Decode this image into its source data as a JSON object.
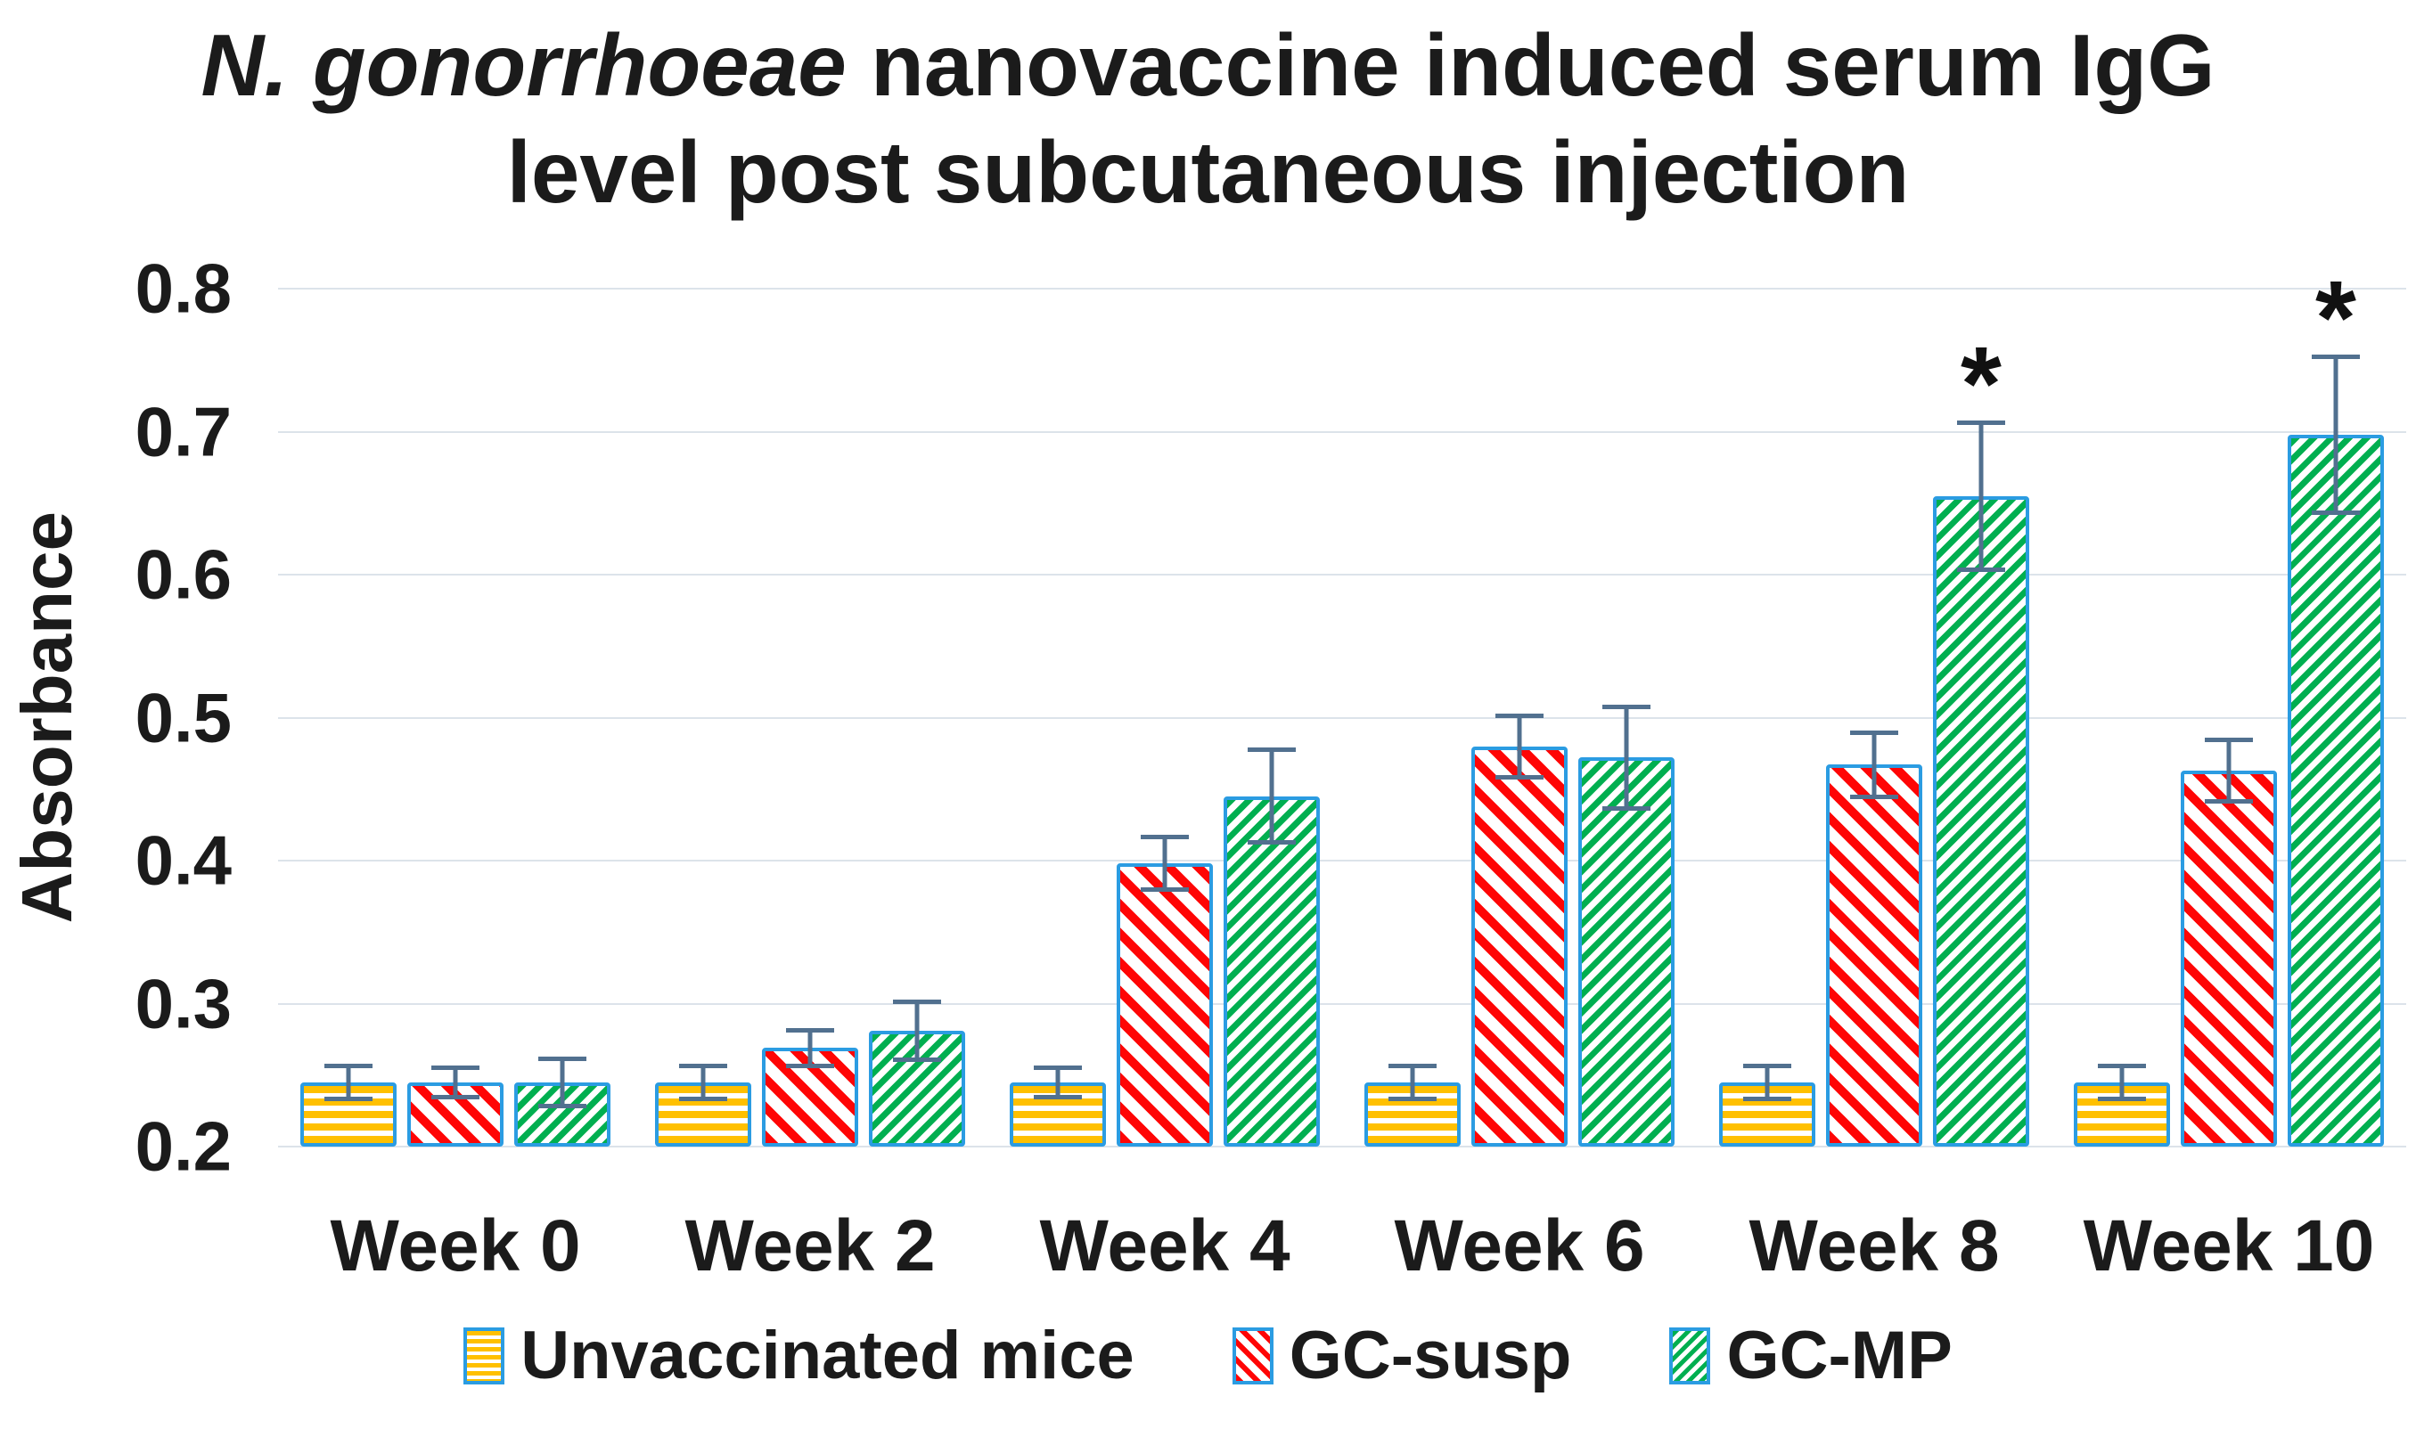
{
  "figure": {
    "title_italic": "N. gonorrhoeae",
    "title_rest": " nanovaccine induced serum IgG",
    "title_line2": "level post subcutaneous injection"
  },
  "chart_data": {
    "type": "bar",
    "title": "N. gonorrhoeae nanovaccine induced serum IgG level post subcutaneous injection",
    "xlabel": "",
    "ylabel": "Absorbance",
    "ylim": [
      0.2,
      0.8
    ],
    "yticks": [
      0.8,
      0.7,
      0.6,
      0.5,
      0.4,
      0.3,
      0.2
    ],
    "grid": true,
    "legend_position": "bottom",
    "categories": [
      "Week 0",
      "Week 2",
      "Week 4",
      "Week 6",
      "Week 8",
      "Week 10"
    ],
    "series": [
      {
        "name": "Unvaccinated mice",
        "pattern": "h-stripes",
        "color": "#FFC000",
        "values": [
          0.245,
          0.245,
          0.245,
          0.245,
          0.245,
          0.245
        ],
        "errors": [
          0.013,
          0.013,
          0.012,
          0.013,
          0.013,
          0.013
        ],
        "annotations": [
          "",
          "",
          "",
          "",
          "",
          ""
        ]
      },
      {
        "name": "GC-susp",
        "pattern": "diag-down",
        "color": "#FF0505",
        "values": [
          0.245,
          0.269,
          0.398,
          0.48,
          0.467,
          0.463
        ],
        "errors": [
          0.012,
          0.014,
          0.02,
          0.023,
          0.024,
          0.023
        ],
        "annotations": [
          "",
          "",
          "",
          "",
          "",
          ""
        ]
      },
      {
        "name": "GC-MP",
        "pattern": "diag-up",
        "color": "#00AF50",
        "values": [
          0.245,
          0.281,
          0.445,
          0.472,
          0.655,
          0.698
        ],
        "errors": [
          0.018,
          0.022,
          0.034,
          0.037,
          0.053,
          0.056
        ],
        "annotations": [
          "",
          "",
          "",
          "",
          "*",
          "*"
        ]
      }
    ],
    "significance_marker": "*",
    "bar_border_color": "#2B9CE2",
    "errorbar_color": "#51708F",
    "gridline_color": "#DCE3EA",
    "text_color": "#1b1b1b"
  }
}
